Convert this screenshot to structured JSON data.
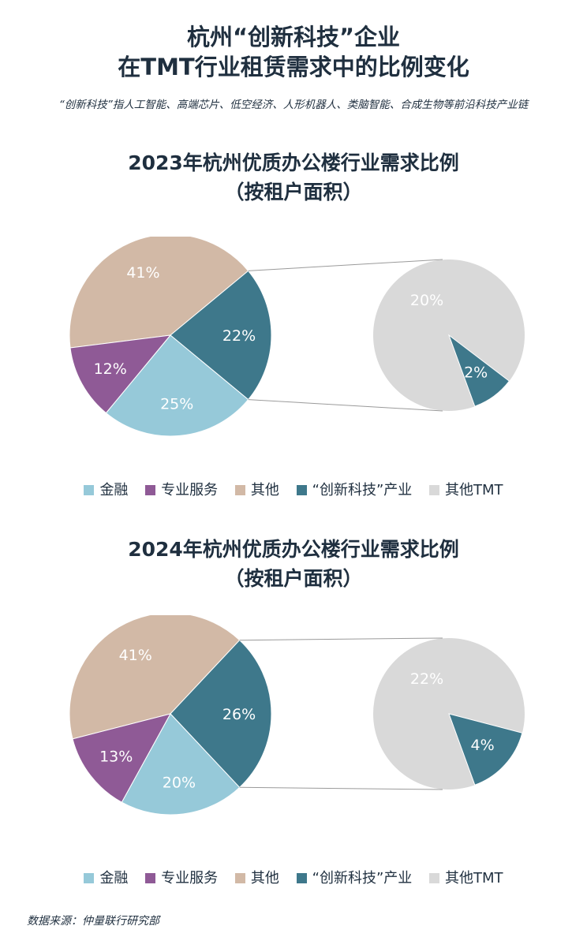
{
  "header": {
    "title_line1": "杭州“创新科技”企业",
    "title_line2": "在TMT行业租赁需求中的比例变化",
    "subtitle": "“创新科技”指人工智能、高端芯片、低空经济、人形机器人、类脑智能、合成生物等前沿科技产业链"
  },
  "legend": [
    {
      "label": "金融",
      "color": "#96c9d9"
    },
    {
      "label": "专业服务",
      "color": "#8f5a96"
    },
    {
      "label": "其他",
      "color": "#d2b9a6"
    },
    {
      "label": "“创新科技”产业",
      "color": "#3e788b"
    },
    {
      "label": "其他TMT",
      "color": "#d9d9d9"
    }
  ],
  "chart_data": [
    {
      "type": "pie",
      "title_line1": "2023年杭州优质办公楼行业需求比例",
      "title_line2": "（按租户面积）",
      "main_pie": {
        "categories": [
          "其他",
          "TMT",
          "金融",
          "专业服务"
        ],
        "values": [
          41,
          22,
          25,
          12
        ],
        "labels": [
          "41%",
          "22%",
          "25%",
          "12%"
        ]
      },
      "detail_pie": {
        "categories": [
          "其他TMT",
          "“创新科技”产业"
        ],
        "values": [
          20,
          2
        ],
        "labels": [
          "20%",
          "2%"
        ]
      }
    },
    {
      "type": "pie",
      "title_line1": "2024年杭州优质办公楼行业需求比例",
      "title_line2": "（按租户面积）",
      "main_pie": {
        "categories": [
          "其他",
          "TMT",
          "金融",
          "专业服务"
        ],
        "values": [
          41,
          26,
          20,
          13
        ],
        "labels": [
          "41%",
          "26%",
          "20%",
          "13%"
        ]
      },
      "detail_pie": {
        "categories": [
          "其他TMT",
          "“创新科技”产业"
        ],
        "values": [
          22,
          4
        ],
        "labels": [
          "22%",
          "4%"
        ]
      }
    }
  ],
  "source": "数据来源：仲量联行研究部"
}
